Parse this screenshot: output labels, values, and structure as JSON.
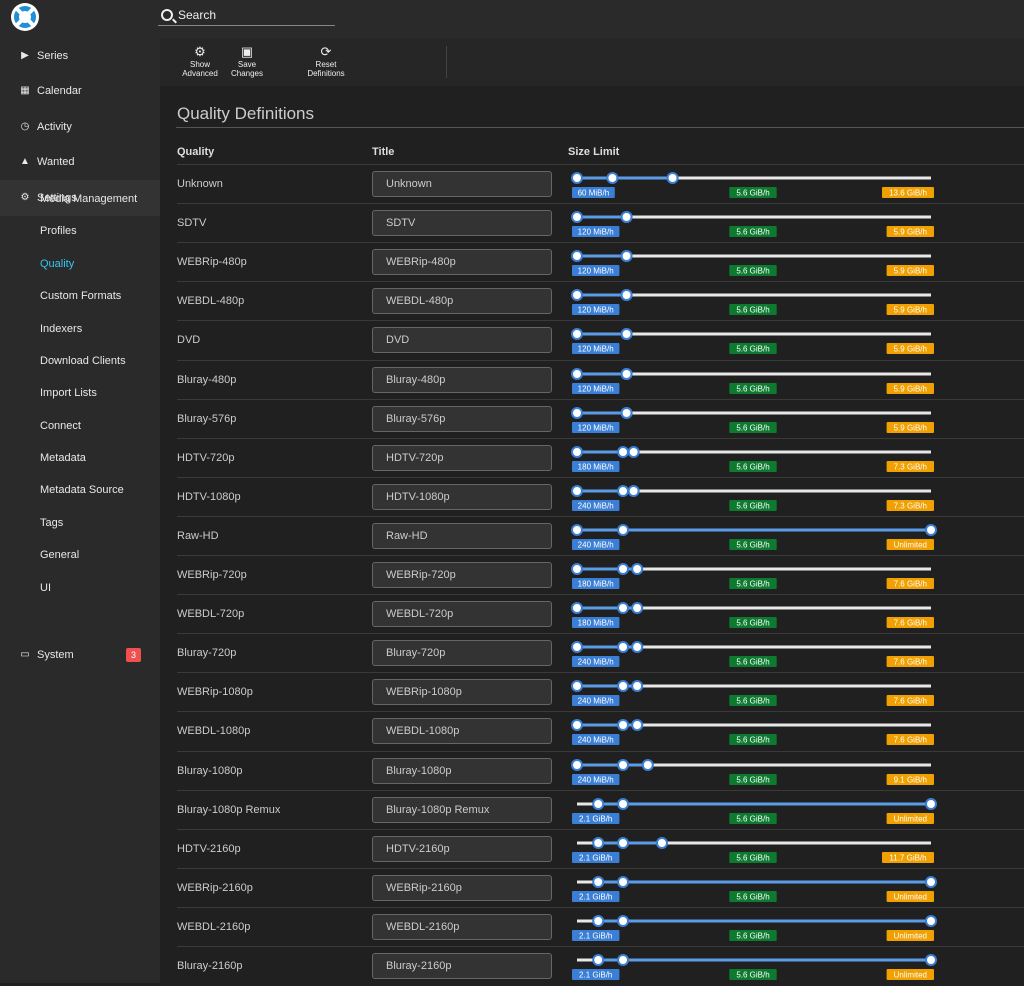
{
  "app": {
    "search_placeholder": "Search"
  },
  "sidebar": {
    "series": "Series",
    "calendar": "Calendar",
    "activity": "Activity",
    "wanted": "Wanted",
    "settings": "Settings",
    "settings_items": [
      "Media Management",
      "Profiles",
      "Quality",
      "Custom Formats",
      "Indexers",
      "Download Clients",
      "Import Lists",
      "Connect",
      "Metadata",
      "Metadata Source",
      "Tags",
      "General",
      "UI"
    ],
    "selected_settings_item": "Quality",
    "system": "System",
    "system_badge": "3"
  },
  "toolbar": {
    "show_advanced_1": "Show",
    "show_advanced_2": "Advanced",
    "save_1": "Save",
    "save_2": "Changes",
    "reset_1": "Reset",
    "reset_2": "Definitions"
  },
  "page": {
    "title": "Quality Definitions",
    "col_quality": "Quality",
    "col_title": "Title",
    "col_size": "Size Limit"
  },
  "colors": {
    "min_label": "#3a7fd5",
    "preferred_label": "#0d7a2f",
    "max_label": "#f0a000",
    "accent": "#35c5f4",
    "badge": "#f05050"
  },
  "qualities": [
    {
      "name": "Unknown",
      "title": "Unknown",
      "min": "60 MiB/h",
      "preferred": "5.6 GiB/h",
      "max": "13.6 GiB/h",
      "h": [
        0.0,
        0.1,
        0.27
      ]
    },
    {
      "name": "SDTV",
      "title": "SDTV",
      "min": "120 MiB/h",
      "preferred": "5.6 GiB/h",
      "max": "5.9 GiB/h",
      "h": [
        0.0,
        0.14,
        0.14
      ]
    },
    {
      "name": "WEBRip-480p",
      "title": "WEBRip-480p",
      "min": "120 MiB/h",
      "preferred": "5.6 GiB/h",
      "max": "5.9 GiB/h",
      "h": [
        0.0,
        0.14,
        0.14
      ]
    },
    {
      "name": "WEBDL-480p",
      "title": "WEBDL-480p",
      "min": "120 MiB/h",
      "preferred": "5.6 GiB/h",
      "max": "5.9 GiB/h",
      "h": [
        0.0,
        0.14,
        0.14
      ]
    },
    {
      "name": "DVD",
      "title": "DVD",
      "min": "120 MiB/h",
      "preferred": "5.6 GiB/h",
      "max": "5.9 GiB/h",
      "h": [
        0.0,
        0.14,
        0.14
      ]
    },
    {
      "name": "Bluray-480p",
      "title": "Bluray-480p",
      "min": "120 MiB/h",
      "preferred": "5.6 GiB/h",
      "max": "5.9 GiB/h",
      "h": [
        0.0,
        0.14,
        0.14
      ]
    },
    {
      "name": "Bluray-576p",
      "title": "Bluray-576p",
      "min": "120 MiB/h",
      "preferred": "5.6 GiB/h",
      "max": "5.9 GiB/h",
      "h": [
        0.0,
        0.14,
        0.14
      ]
    },
    {
      "name": "HDTV-720p",
      "title": "HDTV-720p",
      "min": "180 MiB/h",
      "preferred": "5.6 GiB/h",
      "max": "7.3 GiB/h",
      "h": [
        0.0,
        0.13,
        0.16
      ]
    },
    {
      "name": "HDTV-1080p",
      "title": "HDTV-1080p",
      "min": "240 MiB/h",
      "preferred": "5.6 GiB/h",
      "max": "7.3 GiB/h",
      "h": [
        0.0,
        0.13,
        0.16
      ]
    },
    {
      "name": "Raw-HD",
      "title": "Raw-HD",
      "min": "240 MiB/h",
      "preferred": "5.6 GiB/h",
      "max": "Unlimited",
      "h": [
        0.0,
        0.13,
        1.0
      ]
    },
    {
      "name": "WEBRip-720p",
      "title": "WEBRip-720p",
      "min": "180 MiB/h",
      "preferred": "5.6 GiB/h",
      "max": "7.6 GiB/h",
      "h": [
        0.0,
        0.13,
        0.17
      ]
    },
    {
      "name": "WEBDL-720p",
      "title": "WEBDL-720p",
      "min": "180 MiB/h",
      "preferred": "5.6 GiB/h",
      "max": "7.6 GiB/h",
      "h": [
        0.0,
        0.13,
        0.17
      ]
    },
    {
      "name": "Bluray-720p",
      "title": "Bluray-720p",
      "min": "240 MiB/h",
      "preferred": "5.6 GiB/h",
      "max": "7.6 GiB/h",
      "h": [
        0.0,
        0.13,
        0.17
      ]
    },
    {
      "name": "WEBRip-1080p",
      "title": "WEBRip-1080p",
      "min": "240 MiB/h",
      "preferred": "5.6 GiB/h",
      "max": "7.6 GiB/h",
      "h": [
        0.0,
        0.13,
        0.17
      ]
    },
    {
      "name": "WEBDL-1080p",
      "title": "WEBDL-1080p",
      "min": "240 MiB/h",
      "preferred": "5.6 GiB/h",
      "max": "7.6 GiB/h",
      "h": [
        0.0,
        0.13,
        0.17
      ]
    },
    {
      "name": "Bluray-1080p",
      "title": "Bluray-1080p",
      "min": "240 MiB/h",
      "preferred": "5.6 GiB/h",
      "max": "9.1 GiB/h",
      "h": [
        0.0,
        0.13,
        0.2
      ]
    },
    {
      "name": "Bluray-1080p Remux",
      "title": "Bluray-1080p Remux",
      "min": "2.1 GiB/h",
      "preferred": "5.6 GiB/h",
      "max": "Unlimited",
      "h": [
        0.06,
        0.13,
        1.0
      ]
    },
    {
      "name": "HDTV-2160p",
      "title": "HDTV-2160p",
      "min": "2.1 GiB/h",
      "preferred": "5.6 GiB/h",
      "max": "11.7 GiB/h",
      "h": [
        0.06,
        0.13,
        0.24
      ]
    },
    {
      "name": "WEBRip-2160p",
      "title": "WEBRip-2160p",
      "min": "2.1 GiB/h",
      "preferred": "5.6 GiB/h",
      "max": "Unlimited",
      "h": [
        0.06,
        0.13,
        1.0
      ]
    },
    {
      "name": "WEBDL-2160p",
      "title": "WEBDL-2160p",
      "min": "2.1 GiB/h",
      "preferred": "5.6 GiB/h",
      "max": "Unlimited",
      "h": [
        0.06,
        0.13,
        1.0
      ]
    },
    {
      "name": "Bluray-2160p",
      "title": "Bluray-2160p",
      "min": "2.1 GiB/h",
      "preferred": "5.6 GiB/h",
      "max": "Unlimited",
      "h": [
        0.06,
        0.13,
        1.0
      ]
    }
  ]
}
